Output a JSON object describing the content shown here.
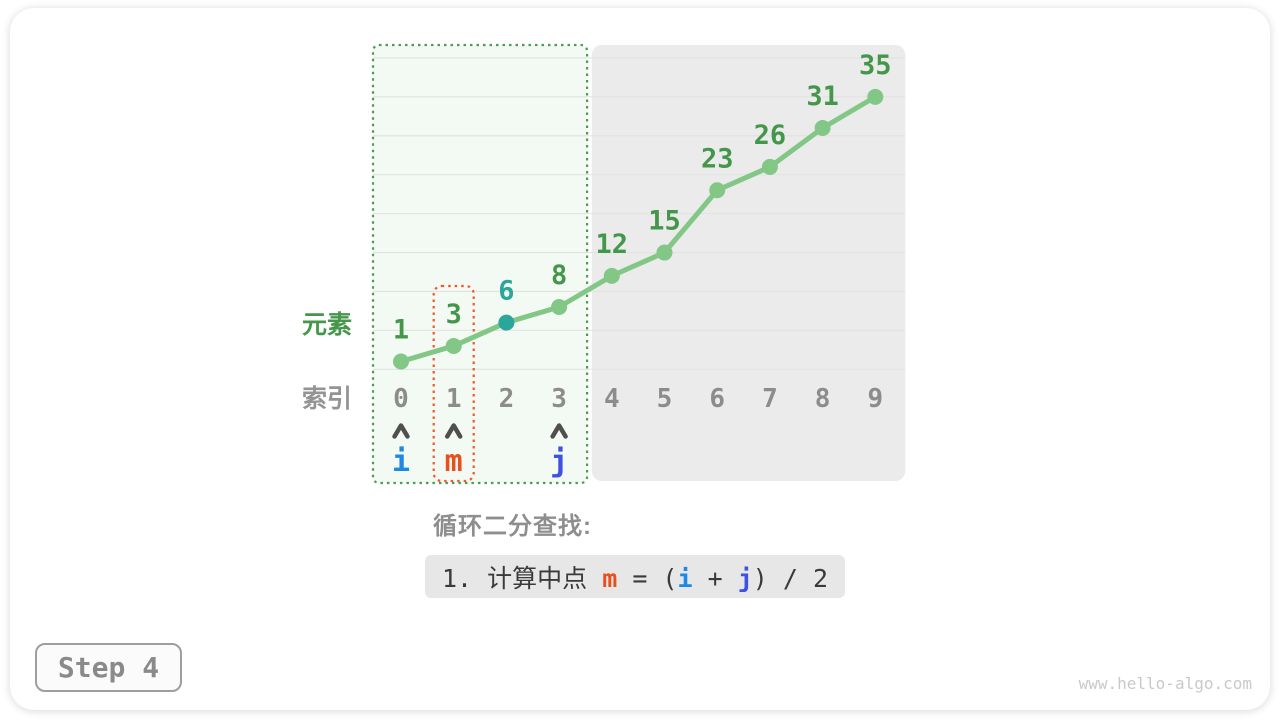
{
  "colors": {
    "line_green": "#82C785",
    "label_green": "#44974A",
    "teal": "#2BA69B",
    "index_gray": "#8C8C8C",
    "row_label_gray": "#949494",
    "caret_gray": "#4F4F4F",
    "pointer_i_blue": "#1E88E5",
    "pointer_j_blue": "#3D51E3",
    "pointer_m_orange": "#E8501E",
    "region_green_fill": "#F3F9F3",
    "region_green_border": "#4A9E50",
    "region_gray_fill": "#EBEBEB",
    "region_orange_border": "#F0592A",
    "gridline": "#E0E3E0",
    "formula_text": "#3A3A3A"
  },
  "chart_data": {
    "type": "line",
    "x": [
      0,
      1,
      2,
      3,
      4,
      5,
      6,
      7,
      8,
      9
    ],
    "values": [
      1,
      3,
      6,
      8,
      12,
      15,
      23,
      26,
      31,
      35
    ],
    "row_labels": {
      "elements": "元素",
      "indices": "索引"
    },
    "highlight_point_index": 2,
    "search_range": {
      "from_index": 0,
      "to_index": 3
    },
    "excluded_range": {
      "from_index": 4,
      "to_index": 9
    },
    "mid_rect_index": 1,
    "pointers": [
      {
        "label": "i",
        "index": 0,
        "color": "pointer_i_blue"
      },
      {
        "label": "m",
        "index": 1,
        "color": "pointer_m_orange"
      },
      {
        "label": "j",
        "index": 3,
        "color": "pointer_j_blue"
      }
    ],
    "ylim": [
      0,
      40
    ],
    "gridline_step": 5,
    "grid": true,
    "legend": false
  },
  "caption": {
    "heading": "循环二分查找:"
  },
  "formula": {
    "segments": [
      {
        "text": "1. 计算中点 ",
        "color": "formula_text"
      },
      {
        "text": "m",
        "color": "pointer_m_orange"
      },
      {
        "text": " = (",
        "color": "formula_text"
      },
      {
        "text": "i",
        "color": "pointer_i_blue"
      },
      {
        "text": " + ",
        "color": "formula_text"
      },
      {
        "text": "j",
        "color": "pointer_j_blue"
      },
      {
        "text": ") / 2",
        "color": "formula_text"
      }
    ]
  },
  "step_badge": {
    "label": "Step 4"
  },
  "watermark": {
    "text": "www.hello-algo.com"
  }
}
